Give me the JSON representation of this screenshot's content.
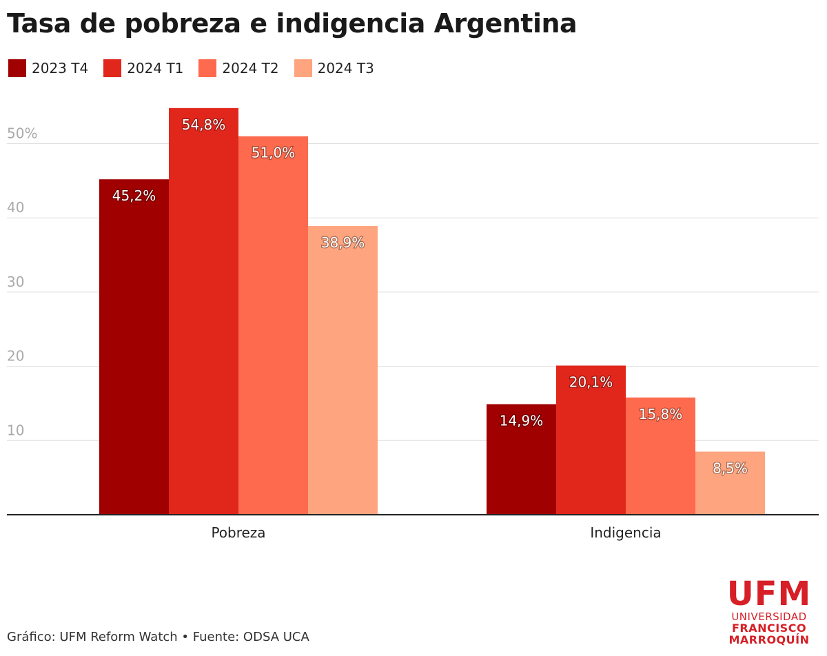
{
  "title": "Tasa de pobreza e indigencia Argentina",
  "footer": "Gráfico: UFM Reform Watch • Fuente: ODSA UCA",
  "logo": {
    "main": "UFM",
    "line1": "UNIVERSIDAD",
    "line2": "FRANCISCO",
    "line3": "MARROQUÍN"
  },
  "chart_data": {
    "type": "bar",
    "title": "Tasa de pobreza e indigencia Argentina",
    "categories": [
      "Pobreza",
      "Indigencia"
    ],
    "series": [
      {
        "name": "2023 T4",
        "values": [
          45.2,
          14.9
        ],
        "labels": [
          "45,2%",
          "14,9%"
        ],
        "color": "#a00000"
      },
      {
        "name": "2024 T1",
        "values": [
          54.8,
          20.1
        ],
        "labels": [
          "54,8%",
          "20,1%"
        ],
        "color": "#e1261c"
      },
      {
        "name": "2024 T2",
        "values": [
          51.0,
          15.8
        ],
        "labels": [
          "51,0%",
          "15,8%"
        ],
        "color": "#fe6a4d"
      },
      {
        "name": "2024 T3",
        "values": [
          38.9,
          8.5
        ],
        "labels": [
          "38,9%",
          "8,5%"
        ],
        "color": "#fea47f"
      }
    ],
    "yticks": [
      10,
      20,
      30,
      40,
      50
    ],
    "ytick_labels": [
      "10",
      "20",
      "30",
      "40",
      "50%"
    ],
    "ylim": [
      0,
      55
    ],
    "grid": true,
    "legend": "top-left"
  }
}
